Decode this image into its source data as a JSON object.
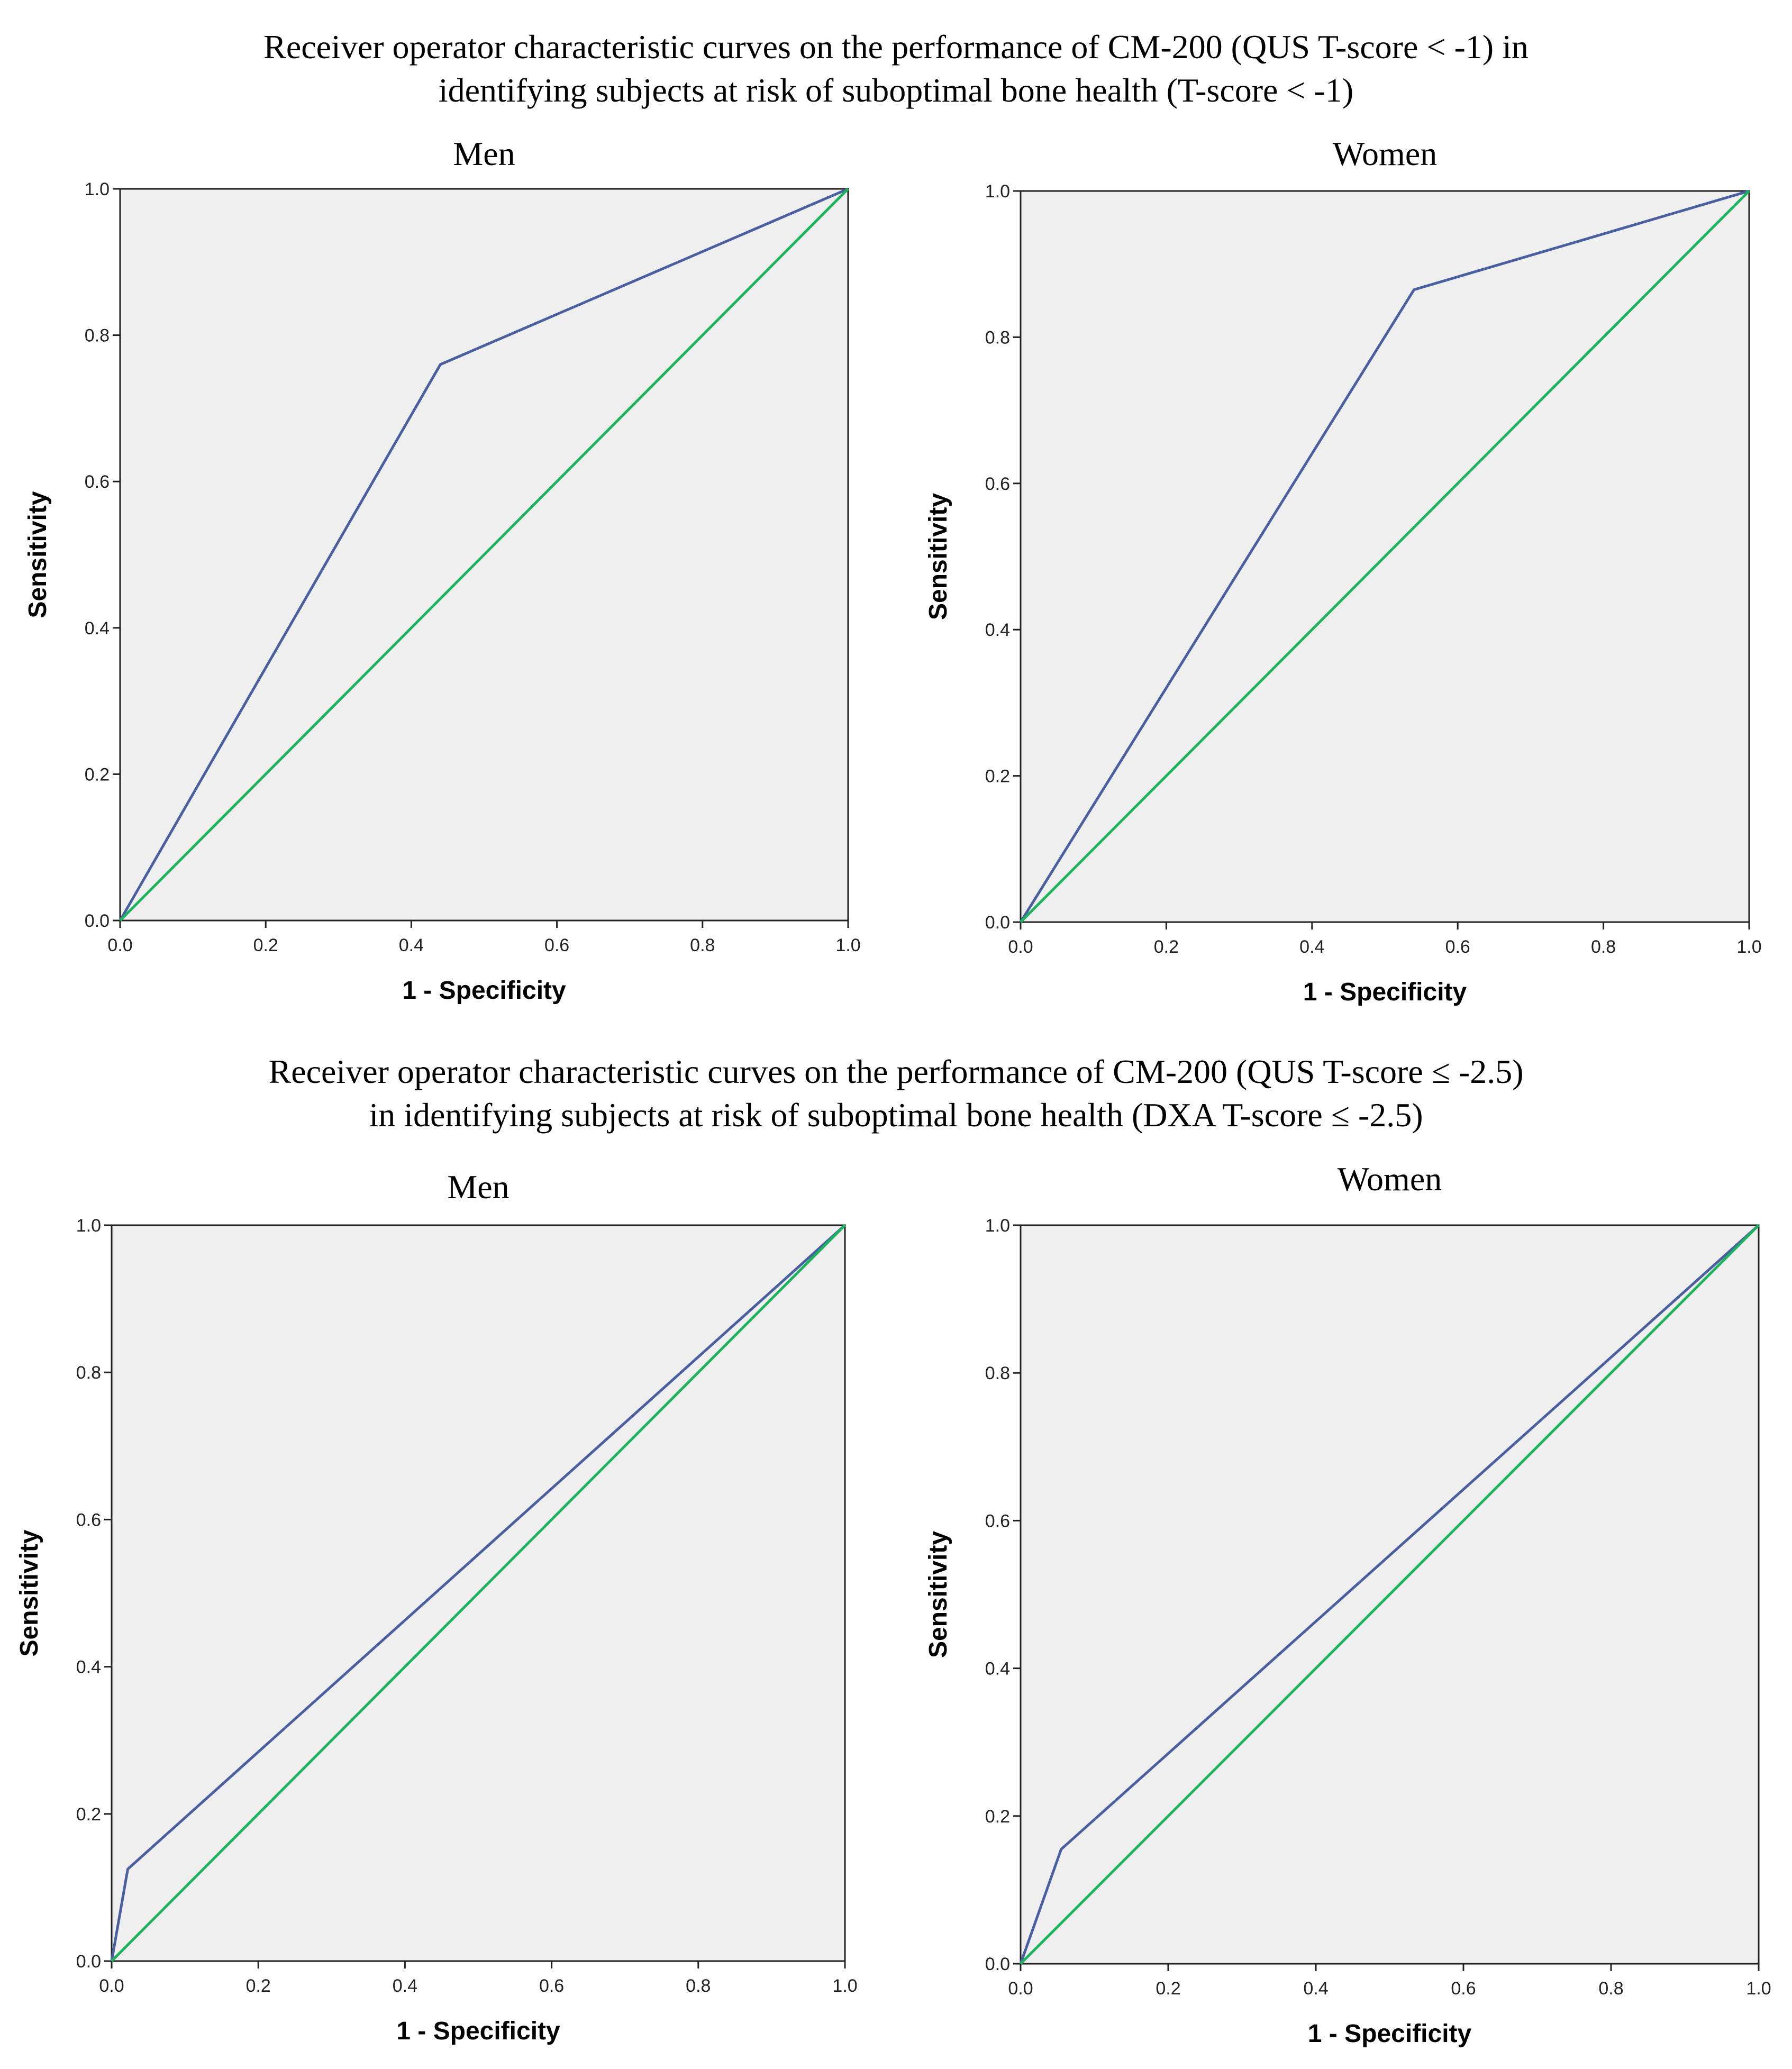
{
  "section_titles": [
    {
      "line1": "Receiver operator characteristic curves on the performance of CM-200 (QUS T-score < -1) in",
      "line2": "identifying subjects at risk of suboptimal bone health (T-score < -1)"
    },
    {
      "line1": "Receiver operator characteristic curves on the performance of CM-200 (QUS T-score ≤ -2.5)",
      "line2": "in identifying subjects at risk of suboptimal bone health (DXA T-score ≤ -2.5)"
    }
  ],
  "colors": {
    "roc_curve": "#4a5fa0",
    "reference_line": "#1db35c",
    "plot_background": "#efefef",
    "axis": "#222222"
  },
  "chart_data": [
    {
      "type": "line",
      "title": "Men",
      "xlabel": "1 - Specificity",
      "ylabel": "Sensitivity",
      "xlim": [
        0,
        1
      ],
      "ylim": [
        0,
        1
      ],
      "ticks": [
        "0.0",
        "0.2",
        "0.4",
        "0.6",
        "0.8",
        "1.0"
      ],
      "series": [
        {
          "name": "ROC curve",
          "x": [
            0,
            0.44,
            1
          ],
          "y": [
            0,
            0.76,
            1
          ]
        },
        {
          "name": "Reference line",
          "x": [
            0,
            1
          ],
          "y": [
            0,
            1
          ]
        }
      ]
    },
    {
      "type": "line",
      "title": "Women",
      "xlabel": "1 - Specificity",
      "ylabel": "Sensitivity",
      "xlim": [
        0,
        1
      ],
      "ylim": [
        0,
        1
      ],
      "ticks": [
        "0.0",
        "0.2",
        "0.4",
        "0.6",
        "0.8",
        "1.0"
      ],
      "series": [
        {
          "name": "ROC curve",
          "x": [
            0,
            0.54,
            1
          ],
          "y": [
            0,
            0.865,
            1
          ]
        },
        {
          "name": "Reference line",
          "x": [
            0,
            1
          ],
          "y": [
            0,
            1
          ]
        }
      ]
    },
    {
      "type": "line",
      "title": "Men",
      "xlabel": "1 - Specificity",
      "ylabel": "Sensitivity",
      "xlim": [
        0,
        1
      ],
      "ylim": [
        0,
        1
      ],
      "ticks": [
        "0.0",
        "0.2",
        "0.4",
        "0.6",
        "0.8",
        "1.0"
      ],
      "series": [
        {
          "name": "ROC curve",
          "x": [
            0,
            0.022,
            1
          ],
          "y": [
            0,
            0.125,
            1
          ]
        },
        {
          "name": "Reference line",
          "x": [
            0,
            1
          ],
          "y": [
            0,
            1
          ]
        }
      ]
    },
    {
      "type": "line",
      "title": "Women",
      "xlabel": "1 - Specificity",
      "ylabel": "Sensitivity",
      "xlim": [
        0,
        1
      ],
      "ylim": [
        0,
        1
      ],
      "ticks": [
        "0.0",
        "0.2",
        "0.4",
        "0.6",
        "0.8",
        "1.0"
      ],
      "series": [
        {
          "name": "ROC curve",
          "x": [
            0,
            0.055,
            1
          ],
          "y": [
            0,
            0.155,
            1
          ]
        },
        {
          "name": "Reference line",
          "x": [
            0,
            1
          ],
          "y": [
            0,
            1
          ]
        }
      ]
    }
  ]
}
